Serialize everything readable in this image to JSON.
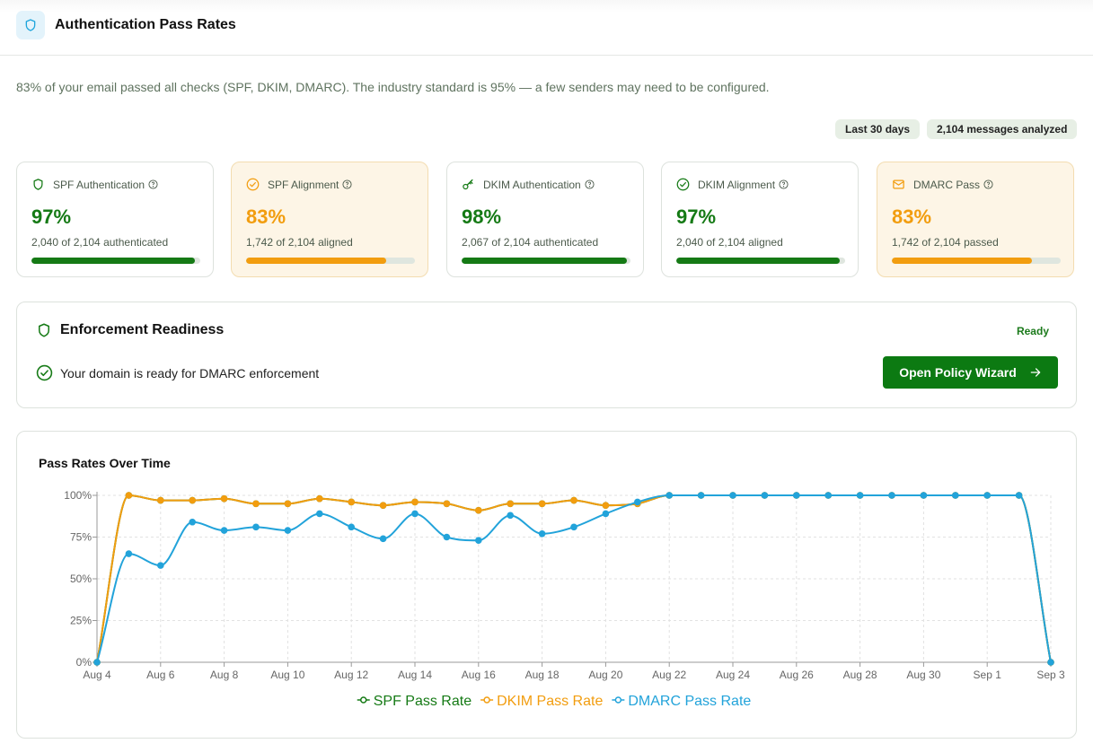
{
  "header": {
    "title": "Authentication Pass Rates"
  },
  "summary": "83% of your email passed all checks (SPF, DKIM, DMARC). The industry standard is 95% — a few senders may need to be configured.",
  "badges": [
    "Last 30 days",
    "2,104 messages analyzed"
  ],
  "cards": [
    {
      "title": "SPF Authentication",
      "value": 97,
      "value_label": "97%",
      "detail": "2,040 of 2,104 authenticated",
      "color": "#157a15",
      "background": "#ffffff",
      "border": "#dde2dd"
    },
    {
      "title": "SPF Alignment",
      "value": 83,
      "value_label": "83%",
      "detail": "1,742 of 2,104 aligned",
      "color": "#f29d0f",
      "background": "#fdf5e6",
      "border": "#f3dcb0"
    },
    {
      "title": "DKIM Authentication",
      "value": 98,
      "value_label": "98%",
      "detail": "2,067 of 2,104 authenticated",
      "color": "#157a15",
      "background": "#ffffff",
      "border": "#dde2dd"
    },
    {
      "title": "DKIM Alignment",
      "value": 97,
      "value_label": "97%",
      "detail": "2,040 of 2,104 aligned",
      "color": "#157a15",
      "background": "#ffffff",
      "border": "#dde2dd"
    },
    {
      "title": "DMARC Pass",
      "value": 83,
      "value_label": "83%",
      "detail": "1,742 of 2,104 passed",
      "color": "#f29d0f",
      "background": "#fdf5e6",
      "border": "#f3dcb0"
    }
  ],
  "enforcement": {
    "title": "Enforcement Readiness",
    "status": "Ready",
    "message": "Your domain is ready for DMARC enforcement",
    "button": "Open Policy Wizard"
  },
  "chart_data": {
    "type": "line",
    "title": "Pass Rates Over Time",
    "categories": [
      "Aug 4",
      null,
      "Aug 6",
      null,
      "Aug 8",
      null,
      "Aug 10",
      null,
      "Aug 12",
      null,
      "Aug 14",
      null,
      "Aug 16",
      null,
      "Aug 18",
      null,
      "Aug 20",
      null,
      "Aug 22",
      null,
      "Aug 24",
      null,
      "Aug 26",
      null,
      "Aug 28",
      null,
      "Aug 30",
      null,
      "Sep 1",
      null,
      "Sep 3"
    ],
    "series": [
      {
        "name": "SPF Pass Rate",
        "color": "#157a15",
        "values": [
          0,
          100,
          97,
          97,
          98,
          95,
          95,
          98,
          96,
          94,
          96,
          95,
          91,
          95,
          95,
          97,
          94,
          95,
          100,
          100,
          100,
          100,
          100,
          100,
          100,
          100,
          100,
          100,
          100,
          100,
          0
        ]
      },
      {
        "name": "DKIM Pass Rate",
        "color": "#f29d0f",
        "values": [
          0,
          100,
          97,
          97,
          98,
          95,
          95,
          98,
          96,
          94,
          96,
          95,
          91,
          95,
          95,
          97,
          94,
          95,
          100,
          100,
          100,
          100,
          100,
          100,
          100,
          100,
          100,
          100,
          100,
          100,
          0
        ]
      },
      {
        "name": "DMARC Pass Rate",
        "color": "#22a3da",
        "values": [
          0,
          65,
          58,
          84,
          79,
          81,
          79,
          89,
          81,
          74,
          89,
          75,
          73,
          88,
          77,
          81,
          89,
          96,
          100,
          100,
          100,
          100,
          100,
          100,
          100,
          100,
          100,
          100,
          100,
          100,
          0
        ]
      }
    ],
    "ylim": [
      0,
      100
    ],
    "yticks": [
      {
        "value": 0,
        "label": "0%"
      },
      {
        "value": 25,
        "label": "25%"
      },
      {
        "value": 50,
        "label": "50%"
      },
      {
        "value": 75,
        "label": "75%"
      },
      {
        "value": 100,
        "label": "100%"
      }
    ],
    "grid": true,
    "legend": "bottom"
  }
}
